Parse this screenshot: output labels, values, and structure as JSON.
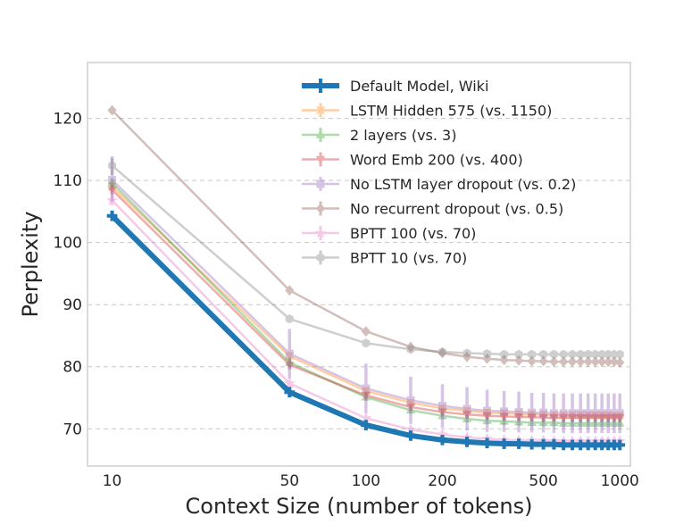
{
  "chart_data": {
    "type": "line",
    "title": "",
    "xlabel": "Context Size (number of tokens)",
    "ylabel": "Perplexity",
    "xscale": "log",
    "xlim": [
      8,
      1100
    ],
    "ylim": [
      64,
      129
    ],
    "xticks": [
      10,
      50,
      100,
      200,
      500,
      1000
    ],
    "xtick_labels": [
      "10",
      "50",
      "100",
      "200",
      "500",
      "1000"
    ],
    "yticks": [
      70,
      80,
      90,
      100,
      110,
      120
    ],
    "ytick_labels": [
      "70",
      "80",
      "90",
      "100",
      "110",
      "120"
    ],
    "grid": "horizontal dashed",
    "legend_position": "top-right",
    "x": [
      10,
      50,
      100,
      150,
      200,
      250,
      300,
      350,
      400,
      450,
      500,
      550,
      600,
      650,
      700,
      750,
      800,
      850,
      900,
      950,
      1000
    ],
    "series": [
      {
        "name": "Default Model, Wiki",
        "color": "#1f77b4",
        "marker": "plus",
        "emphasis": true,
        "values": [
          104.3,
          75.9,
          70.6,
          68.9,
          68.2,
          67.9,
          67.7,
          67.6,
          67.6,
          67.5,
          67.5,
          67.5,
          67.4,
          67.4,
          67.4,
          67.4,
          67.4,
          67.4,
          67.4,
          67.4,
          67.4
        ],
        "errors": [
          0.6,
          0.5,
          0.5,
          0.4,
          0.4,
          0.4,
          0.4,
          0.4,
          0.4,
          0.4,
          0.4,
          0.4,
          0.4,
          0.4,
          0.4,
          0.4,
          0.4,
          0.4,
          0.4,
          0.4,
          0.4
        ]
      },
      {
        "name": "LSTM Hidden 575 (vs. 1150)",
        "color": "#ff7f0e",
        "marker": "x",
        "values": [
          109.0,
          81.7,
          76.1,
          74.2,
          73.3,
          72.9,
          72.6,
          72.5,
          72.4,
          72.3,
          72.3,
          72.2,
          72.2,
          72.2,
          72.2,
          72.2,
          72.2,
          72.2,
          72.2,
          72.1,
          72.1
        ],
        "errors": [
          0.8,
          0.7,
          0.6,
          0.6,
          0.6,
          0.6,
          0.6,
          0.6,
          0.6,
          0.6,
          0.6,
          0.6,
          0.6,
          0.6,
          0.6,
          0.6,
          0.6,
          0.6,
          0.6,
          0.6,
          0.6
        ]
      },
      {
        "name": "2 layers (vs. 3)",
        "color": "#2ca02c",
        "marker": "triangle-up",
        "values": [
          109.6,
          80.7,
          75.1,
          73.0,
          72.1,
          71.6,
          71.3,
          71.2,
          71.1,
          71.0,
          71.0,
          71.0,
          70.9,
          70.9,
          70.9,
          70.9,
          70.9,
          70.9,
          70.9,
          70.9,
          70.9
        ],
        "errors": [
          0.8,
          0.7,
          0.6,
          0.6,
          0.6,
          0.6,
          0.6,
          0.6,
          0.6,
          0.6,
          0.6,
          0.6,
          0.6,
          0.6,
          0.6,
          0.6,
          0.6,
          0.6,
          0.6,
          0.6,
          0.6
        ]
      },
      {
        "name": "Word Emb 200 (vs. 400)",
        "color": "#d62728",
        "marker": "triangle-down",
        "values": [
          108.5,
          80.3,
          75.4,
          73.5,
          72.7,
          72.3,
          72.1,
          72.0,
          71.9,
          71.9,
          71.8,
          71.8,
          71.8,
          71.8,
          71.8,
          71.8,
          71.8,
          71.8,
          71.8,
          71.8,
          71.8
        ],
        "errors": [
          0.8,
          0.7,
          0.6,
          0.6,
          0.6,
          0.6,
          0.6,
          0.6,
          0.6,
          0.6,
          0.6,
          0.6,
          0.6,
          0.6,
          0.6,
          0.6,
          0.6,
          0.6,
          0.6,
          0.6,
          0.6
        ]
      },
      {
        "name": "No LSTM layer dropout (vs. 0.2)",
        "color": "#9467bd",
        "marker": "square",
        "values": [
          110.1,
          82.1,
          76.5,
          74.6,
          73.7,
          73.2,
          72.9,
          72.8,
          72.7,
          72.6,
          72.6,
          72.5,
          72.5,
          72.5,
          72.5,
          72.5,
          72.5,
          72.5,
          72.5,
          72.5,
          72.5
        ],
        "errors": [
          3.5,
          4.0,
          4.0,
          3.8,
          3.5,
          3.5,
          3.4,
          3.3,
          3.3,
          3.2,
          3.2,
          3.2,
          3.2,
          3.2,
          3.2,
          3.2,
          3.2,
          3.2,
          3.2,
          3.2,
          3.2
        ]
      },
      {
        "name": "No recurrent dropout (vs. 0.5)",
        "color": "#8c564b",
        "marker": "diamond",
        "values": [
          121.3,
          92.3,
          85.7,
          83.2,
          82.2,
          81.6,
          81.3,
          81.1,
          81.0,
          80.9,
          80.9,
          80.8,
          80.8,
          80.8,
          80.8,
          80.8,
          80.8,
          80.8,
          80.8,
          80.8,
          80.7
        ],
        "errors": [
          0.6,
          0.5,
          0.5,
          0.5,
          0.5,
          0.5,
          0.5,
          0.5,
          0.5,
          0.5,
          0.5,
          0.5,
          0.5,
          0.5,
          0.5,
          0.5,
          0.5,
          0.5,
          0.5,
          0.5,
          0.5
        ]
      },
      {
        "name": "BPTT 100 (vs. 70)",
        "color": "#e377c2",
        "marker": "star",
        "values": [
          106.8,
          77.3,
          71.7,
          69.9,
          69.1,
          68.6,
          68.4,
          68.2,
          68.1,
          68.1,
          68.1,
          68.0,
          68.0,
          68.0,
          68.0,
          68.0,
          68.0,
          68.0,
          68.0,
          68.0,
          68.0
        ],
        "errors": [
          0.8,
          0.6,
          0.6,
          0.6,
          0.6,
          0.6,
          0.6,
          0.6,
          0.6,
          0.6,
          0.6,
          0.6,
          0.6,
          0.6,
          0.6,
          0.6,
          0.6,
          0.6,
          0.6,
          0.6,
          0.6
        ]
      },
      {
        "name": "BPTT 10 (vs. 70)",
        "color": "#7f7f7f",
        "marker": "hexagon",
        "values": [
          112.4,
          87.7,
          83.8,
          82.8,
          82.4,
          82.2,
          82.1,
          82.0,
          82.0,
          82.0,
          82.0,
          82.0,
          82.0,
          82.0,
          82.0,
          82.0,
          82.0,
          82.0,
          82.0,
          82.0,
          82.0
        ],
        "errors": [
          1.5,
          0.5,
          0.4,
          0.4,
          0.4,
          0.4,
          0.4,
          0.4,
          0.4,
          0.4,
          0.4,
          0.4,
          0.4,
          0.4,
          0.4,
          0.4,
          0.4,
          0.4,
          0.4,
          0.4,
          0.4
        ]
      }
    ]
  }
}
